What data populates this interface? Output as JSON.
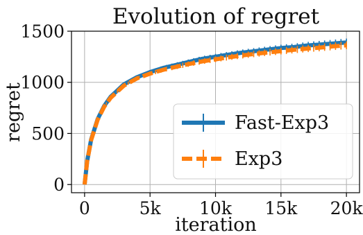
{
  "chart_data": {
    "type": "line",
    "title": "Evolution of regret",
    "xlabel": "iteration",
    "ylabel": "regret",
    "xlim": [
      -1000,
      21000
    ],
    "ylim": [
      -80,
      1500
    ],
    "xticks": [
      0,
      5000,
      10000,
      15000,
      20000
    ],
    "xtick_labels": [
      "0",
      "5k",
      "10k",
      "15k",
      "20k"
    ],
    "yticks": [
      0,
      500,
      1000,
      1500
    ],
    "ytick_labels": [
      "0",
      "500",
      "1000",
      "1500"
    ],
    "grid": true,
    "legend": "center-right",
    "series": [
      {
        "name": "Fast-Exp3",
        "color": "#1f77b4",
        "style": "solid",
        "x": [
          0,
          200,
          500,
          1000,
          1500,
          2000,
          3000,
          4000,
          5000,
          6000,
          7000,
          8000,
          9000,
          10000,
          11000,
          12000,
          13000,
          14000,
          15000,
          16000,
          17000,
          18000,
          19000,
          20000
        ],
        "y": [
          0,
          230,
          440,
          640,
          770,
          860,
          980,
          1050,
          1100,
          1140,
          1170,
          1200,
          1230,
          1250,
          1270,
          1290,
          1305,
          1320,
          1335,
          1345,
          1360,
          1370,
          1380,
          1390
        ],
        "error": [
          0,
          5,
          8,
          10,
          12,
          14,
          16,
          18,
          20,
          22,
          24,
          26,
          27,
          28,
          29,
          30,
          31,
          32,
          33,
          34,
          35,
          36,
          37,
          38
        ]
      },
      {
        "name": "Exp3",
        "color": "#ff7f0e",
        "style": "dashed",
        "x": [
          0,
          200,
          500,
          1000,
          1500,
          2000,
          3000,
          4000,
          5000,
          6000,
          7000,
          8000,
          9000,
          10000,
          11000,
          12000,
          13000,
          14000,
          15000,
          16000,
          17000,
          18000,
          19000,
          20000
        ],
        "y": [
          0,
          228,
          435,
          635,
          762,
          850,
          968,
          1038,
          1085,
          1122,
          1152,
          1180,
          1205,
          1225,
          1245,
          1262,
          1278,
          1292,
          1305,
          1318,
          1330,
          1340,
          1352,
          1362
        ],
        "error": [
          0,
          5,
          8,
          10,
          12,
          14,
          16,
          18,
          20,
          22,
          24,
          26,
          27,
          28,
          29,
          30,
          31,
          32,
          33,
          34,
          35,
          36,
          37,
          38
        ]
      }
    ]
  }
}
